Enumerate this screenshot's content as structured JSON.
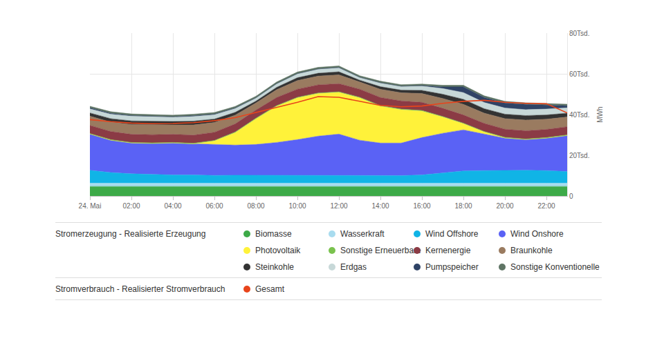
{
  "chart_data": {
    "type": "area",
    "stacked": true,
    "grid": true,
    "legend": "bottom",
    "y_label": "MWh",
    "categories": [
      "24. Mai",
      null,
      "02:00",
      null,
      "04:00",
      null,
      "06:00",
      null,
      "08:00",
      null,
      "10:00",
      null,
      "12:00",
      null,
      "14:00",
      null,
      "16:00",
      null,
      "18:00",
      null,
      "20:00",
      null,
      "22:00",
      null
    ],
    "ylim": [
      0,
      80000
    ],
    "yticks": [
      0,
      {
        "value": 20000,
        "label": "20Tsd."
      },
      {
        "value": 40000,
        "label": "40Tsd."
      },
      {
        "value": 60000,
        "label": "60Tsd."
      },
      {
        "value": 80000,
        "label": "80Tsd."
      }
    ],
    "series": [
      {
        "name": "Biomasse",
        "group": "Stromerzeugung - Realisierte Erzeugung",
        "color": "#3daa48",
        "values": [
          4700,
          4700,
          4700,
          4700,
          4700,
          4700,
          4700,
          4700,
          4700,
          4700,
          4700,
          4700,
          4700,
          4700,
          4700,
          4700,
          4700,
          4700,
          4700,
          4700,
          4700,
          4700,
          4700,
          4700
        ]
      },
      {
        "name": "Wasserkraft",
        "group": "Stromerzeugung - Realisierte Erzeugung",
        "color": "#a8dcef",
        "values": [
          1600,
          1600,
          1600,
          1600,
          1600,
          1600,
          1600,
          1600,
          1600,
          1600,
          1600,
          1600,
          1600,
          1600,
          1600,
          1600,
          1600,
          1600,
          1600,
          1600,
          1600,
          1600,
          1600,
          1600
        ]
      },
      {
        "name": "Wind Offshore",
        "group": "Stromerzeugung - Realisierte Erzeugung",
        "color": "#10b4e6",
        "values": [
          6300,
          5200,
          4600,
          4300,
          4000,
          4000,
          3800,
          3900,
          3900,
          3900,
          3900,
          3800,
          3800,
          3800,
          3700,
          3700,
          4000,
          5000,
          6000,
          6200,
          6300,
          6300,
          6200,
          5700
        ]
      },
      {
        "name": "Wind Onshore",
        "group": "Stromerzeugung - Realisierte Erzeugung",
        "color": "#5a62f5",
        "values": [
          17800,
          15900,
          15100,
          15200,
          15700,
          15300,
          15200,
          14800,
          15100,
          16100,
          17500,
          19300,
          20300,
          17300,
          16000,
          16000,
          18400,
          19500,
          20200,
          17900,
          15800,
          15100,
          15900,
          17700
        ]
      },
      {
        "name": "Photovoltaik",
        "group": "Stromerzeugung - Realisierte Erzeugung",
        "color": "#fff23a",
        "values": [
          0,
          0,
          0,
          0,
          0,
          0,
          1700,
          6100,
          12600,
          17800,
          20500,
          20900,
          20500,
          20800,
          18100,
          16400,
          13000,
          8000,
          3000,
          1000,
          100,
          0,
          0,
          0
        ]
      },
      {
        "name": "Sonstige Erneuerbare",
        "group": "Stromerzeugung - Realisierte Erzeugung",
        "color": "#7ac24e",
        "values": [
          300,
          300,
          300,
          300,
          300,
          300,
          300,
          300,
          300,
          300,
          300,
          300,
          300,
          300,
          300,
          300,
          300,
          300,
          300,
          300,
          300,
          300,
          300,
          300
        ]
      },
      {
        "name": "Kernenergie",
        "group": "Stromerzeugung - Realisierte Erzeugung",
        "color": "#8b3b45",
        "values": [
          4000,
          4000,
          4000,
          4000,
          4000,
          4000,
          4000,
          4000,
          4000,
          4000,
          4000,
          4000,
          4000,
          4000,
          4000,
          4000,
          4000,
          4000,
          4000,
          4000,
          4000,
          4000,
          4000,
          4000
        ]
      },
      {
        "name": "Braunkohle",
        "group": "Stromerzeugung - Realisierte Erzeugung",
        "color": "#9a7b60",
        "values": [
          4500,
          4600,
          4800,
          4800,
          4600,
          5000,
          4800,
          4300,
          3500,
          3800,
          4200,
          4300,
          4300,
          3500,
          4000,
          4000,
          4300,
          4800,
          5200,
          5000,
          5200,
          5300,
          5000,
          4800
        ]
      },
      {
        "name": "Steinkohle",
        "group": "Stromerzeugung - Realisierte Erzeugung",
        "color": "#333333",
        "values": [
          1600,
          1700,
          1800,
          1800,
          1700,
          1900,
          1700,
          1400,
          900,
          1200,
          1400,
          1400,
          1500,
          900,
          1300,
          1300,
          1600,
          2100,
          2500,
          2200,
          2200,
          2200,
          2100,
          1900
        ]
      },
      {
        "name": "Erdgas",
        "group": "Stromerzeugung - Realisierte Erzeugung",
        "color": "#c7d8d8",
        "values": [
          2000,
          2200,
          2300,
          2200,
          2100,
          2300,
          2100,
          1900,
          1500,
          1700,
          1900,
          2000,
          2000,
          1300,
          1800,
          1800,
          2100,
          2800,
          3300,
          3000,
          3000,
          2900,
          2900,
          2600
        ]
      },
      {
        "name": "Pumpspeicher",
        "group": "Stromerzeugung - Realisierte Erzeugung",
        "color": "#2f4366",
        "values": [
          500,
          400,
          300,
          300,
          200,
          300,
          300,
          200,
          100,
          100,
          100,
          100,
          100,
          100,
          100,
          100,
          200,
          800,
          2800,
          2500,
          2500,
          2600,
          2000,
          1000
        ]
      },
      {
        "name": "Sonstige Konventionelle",
        "group": "Stromerzeugung - Realisierte Erzeugung",
        "color": "#5f7565",
        "values": [
          800,
          800,
          800,
          800,
          800,
          800,
          800,
          800,
          800,
          800,
          800,
          800,
          800,
          800,
          800,
          800,
          800,
          800,
          800,
          800,
          800,
          800,
          800,
          800
        ]
      },
      {
        "name": "Gesamt",
        "group": "Stromverbrauch - Realisierter Stromverbrauch",
        "type": "line",
        "color": "#e8441b",
        "values": [
          37500,
          36500,
          35800,
          35500,
          35600,
          36000,
          37000,
          38500,
          41000,
          43500,
          46000,
          48800,
          48500,
          46500,
          44500,
          43800,
          44200,
          45500,
          46500,
          47000,
          46000,
          45500,
          45300,
          40800
        ]
      }
    ]
  }
}
